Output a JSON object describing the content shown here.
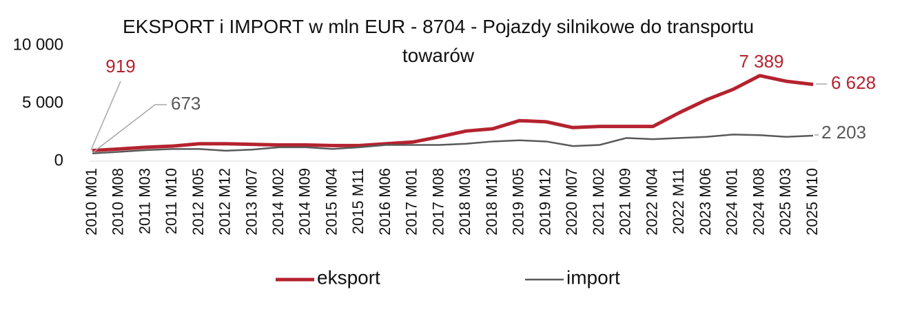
{
  "chart_data": {
    "type": "line",
    "title": "EKSPORT i IMPORT w mln EUR - 8704 - Pojazdy silnikowe do transportu towarów",
    "categories": [
      "2010 M01",
      "2010 M08",
      "2011 M03",
      "2011 M10",
      "2012 M05",
      "2012 M12",
      "2013 M07",
      "2014 M02",
      "2014 M09",
      "2015 M04",
      "2015 M11",
      "2016 M06",
      "2017 M01",
      "2017 M08",
      "2018 M03",
      "2018 M10",
      "2019 M05",
      "2019 M12",
      "2020 M07",
      "2021 M02",
      "2021 M09",
      "2022 M04",
      "2022 M11",
      "2023 M06",
      "2024 M01",
      "2024 M08",
      "2025 M03",
      "2025 M10"
    ],
    "series": [
      {
        "name": "eksport",
        "color": "#b5222f",
        "values": [
          919,
          1050,
          1200,
          1300,
          1500,
          1500,
          1450,
          1400,
          1400,
          1350,
          1350,
          1500,
          1650,
          2100,
          2600,
          2800,
          3500,
          3400,
          2900,
          3000,
          3000,
          3000,
          4200,
          5300,
          6200,
          7389,
          6900,
          6628
        ],
        "value_labels": [
          "919",
          null,
          null,
          null,
          null,
          null,
          null,
          null,
          null,
          null,
          null,
          null,
          null,
          null,
          null,
          null,
          null,
          null,
          null,
          null,
          null,
          null,
          null,
          null,
          null,
          "7 389",
          null,
          "6 628"
        ]
      },
      {
        "name": "import",
        "color": "#595959",
        "values": [
          673,
          800,
          950,
          1050,
          1050,
          900,
          1000,
          1200,
          1200,
          1050,
          1200,
          1400,
          1400,
          1400,
          1500,
          1700,
          1800,
          1700,
          1300,
          1400,
          2000,
          1900,
          2000,
          2100,
          2300,
          2250,
          2100,
          2203
        ],
        "value_labels": [
          "673",
          null,
          null,
          null,
          null,
          null,
          null,
          null,
          null,
          null,
          null,
          null,
          null,
          null,
          null,
          null,
          null,
          null,
          null,
          null,
          null,
          null,
          null,
          null,
          null,
          null,
          null,
          "2 203"
        ]
      }
    ],
    "ylim": [
      0,
      10000
    ],
    "yticks": [
      0,
      {
        "value": 5000,
        "label": "5 000"
      },
      {
        "value": 10000,
        "label": "10 000"
      }
    ],
    "grid": false,
    "legend": "bottom"
  }
}
